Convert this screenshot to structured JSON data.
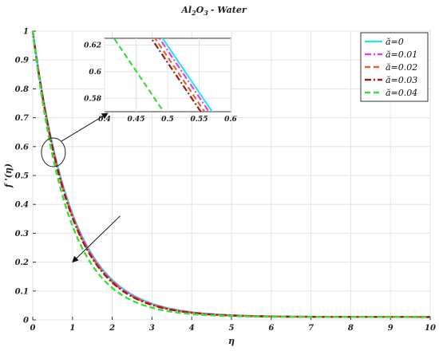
{
  "chart_data": {
    "type": "line",
    "title": {
      "main": "Al",
      "sub1": "2",
      "mid": "O",
      "sub2": "3",
      "tail": "- Water"
    },
    "xlabel": "η",
    "ylabel": "f '(η)",
    "xlim": [
      0,
      10
    ],
    "ylim": [
      0,
      1
    ],
    "x_ticks": [
      "0",
      "1",
      "2",
      "3",
      "4",
      "5",
      "6",
      "7",
      "8",
      "9",
      "10"
    ],
    "y_ticks": [
      "0",
      "0.1",
      "0.2",
      "0.3",
      "0.4",
      "0.5",
      "0.6",
      "0.7",
      "0.8",
      "0.9",
      "1"
    ],
    "grid": true,
    "legend_position": "top-right",
    "series": [
      {
        "name": "ă=0",
        "color": "#33e0f0",
        "dash": "solid",
        "decay": 1.0
      },
      {
        "name": "ă=0.01",
        "color": "#e83ce8",
        "dash": "dashdot",
        "decay": 1.012
      },
      {
        "name": "ă=0.02",
        "color": "#e8632a",
        "dash": "dashed",
        "decay": 1.024
      },
      {
        "name": "ă=0.03",
        "color": "#9b1c1c",
        "dash": "dashdot",
        "decay": 1.036
      },
      {
        "name": "ă=0.04",
        "color": "#33e033",
        "dash": "dashed",
        "decay": 1.12
      }
    ],
    "model": {
      "base_decay": 1.02,
      "asymptote": 0.01
    },
    "inset": {
      "xlim": [
        0.4,
        0.6
      ],
      "ylim": [
        0.57,
        0.625
      ],
      "x_ticks": [
        "0.4",
        "0.45",
        "0.5",
        "0.55",
        "0.6"
      ],
      "y_ticks": [
        "0.58",
        "0.6",
        "0.62"
      ]
    },
    "annotations": {
      "zoom_circle_center": [
        0.52,
        0.58
      ],
      "trend_arrow": {
        "from": [
          2.2,
          0.36
        ],
        "to": [
          1.0,
          0.2
        ]
      }
    }
  }
}
